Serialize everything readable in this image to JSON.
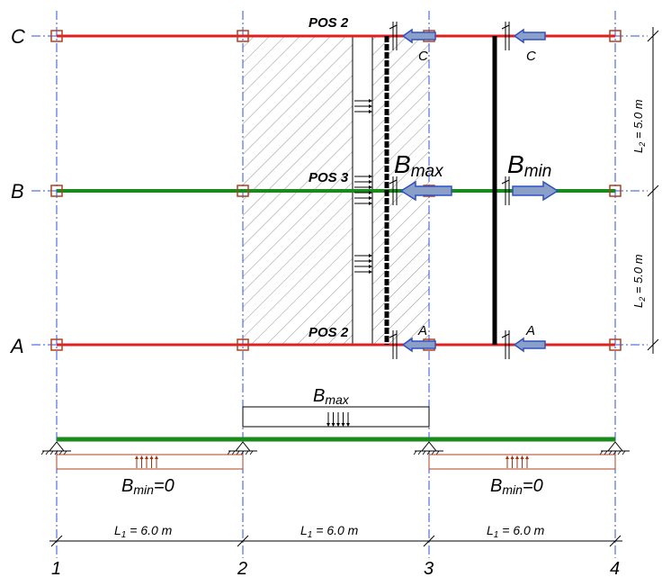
{
  "axes": {
    "rows": [
      {
        "label": "C"
      },
      {
        "label": "B"
      },
      {
        "label": "A"
      }
    ],
    "columns": [
      {
        "label": "1"
      },
      {
        "label": "2"
      },
      {
        "label": "3"
      },
      {
        "label": "4"
      }
    ]
  },
  "beams": {
    "pos_top": "POS 2",
    "pos_mid": "POS 3",
    "pos_bot": "POS 2"
  },
  "section_marks": {
    "c_left": "C",
    "c_right": "C",
    "a_left": "A",
    "a_right": "A"
  },
  "reactions": {
    "bmax_main": "B",
    "bmax_sub": "max",
    "bmin_main": "B",
    "bmin_sub": "min"
  },
  "dimensions": {
    "l2_top": {
      "main": "L",
      "sub": "2",
      "text": " = 5.0 m"
    },
    "l2_bot": {
      "main": "L",
      "sub": "2",
      "text": " = 5.0 m"
    },
    "l1_spans": [
      {
        "main": "L",
        "sub": "1",
        "text": " = 6.0 m"
      },
      {
        "main": "L",
        "sub": "1",
        "text": " = 6.0 m"
      },
      {
        "main": "L",
        "sub": "1",
        "text": " = 6.0 m"
      }
    ]
  },
  "load_diagram": {
    "bmax_main": "B",
    "bmax_sub": "max",
    "bmin_left": {
      "main": "B",
      "sub": "min",
      "eq": "=0"
    },
    "bmin_right": {
      "main": "B",
      "sub": "min",
      "eq": "=0"
    }
  },
  "colors": {
    "axis_line": "#3050e0",
    "beam_red": "#e02020",
    "beam_green": "#1a8a1a",
    "arrow_fill": "#8aa0c8",
    "arrow_stroke": "#3050c0",
    "upload_arrow": "#a03010",
    "support_box": "#b04020"
  }
}
